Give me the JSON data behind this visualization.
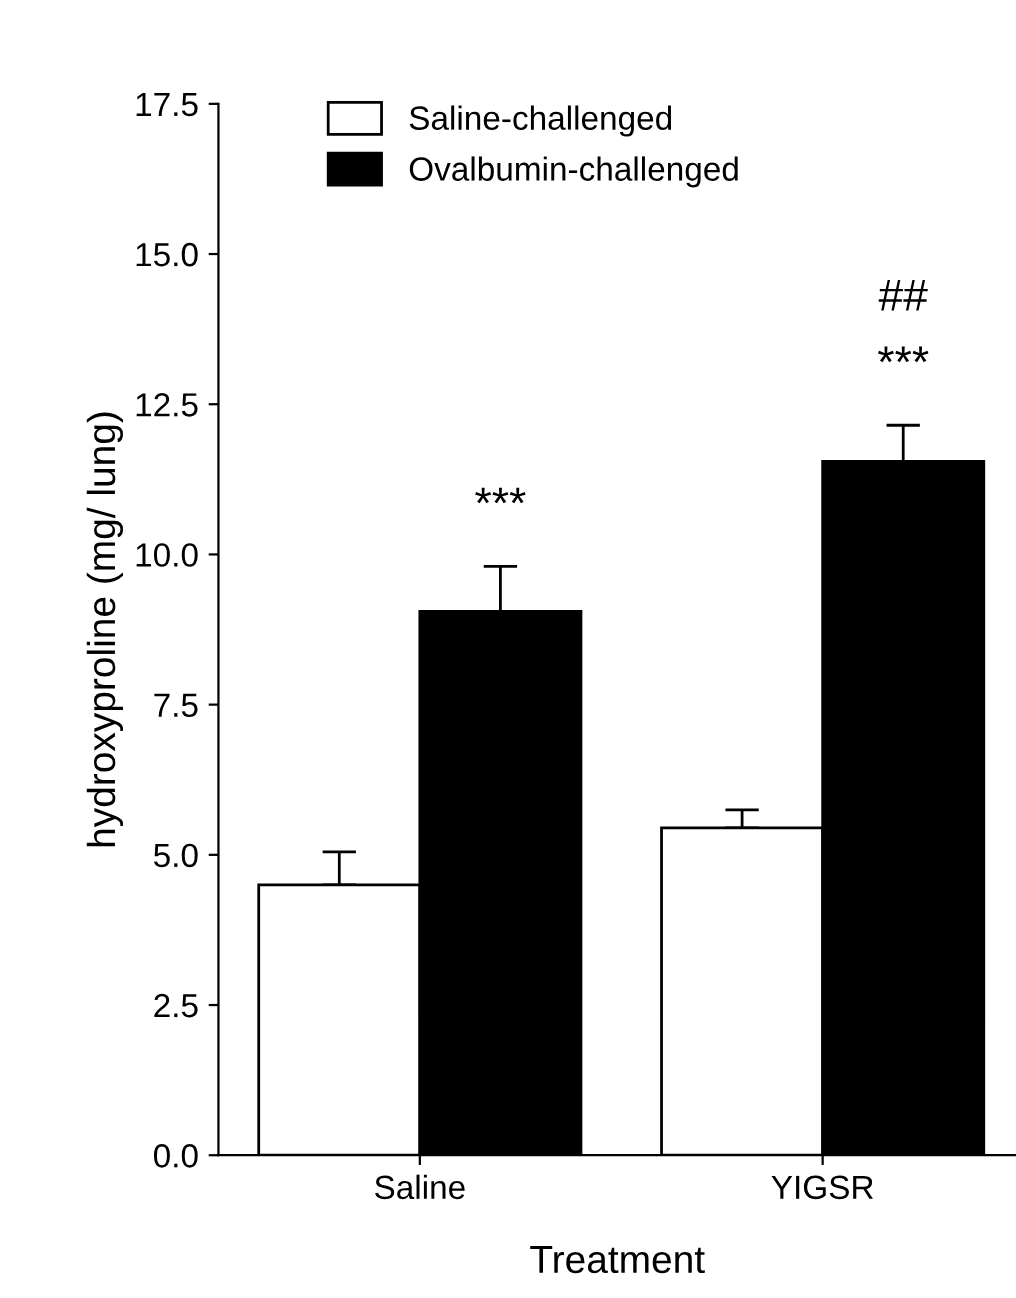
{
  "chart_data": {
    "type": "bar",
    "xlabel": "Treatment",
    "ylabel": "hydroxyproline (mg/ lung)",
    "categories": [
      "Saline",
      "YIGSR"
    ],
    "series": [
      {
        "name": "Saline-challenged",
        "color": "#ffffff",
        "values": [
          4.5,
          5.45
        ],
        "errors": [
          [
            4.5,
            5.05
          ],
          [
            5.45,
            5.75
          ]
        ]
      },
      {
        "name": "Ovalbumin-challenged",
        "color": "#000000",
        "values": [
          9.05,
          11.55
        ],
        "errors": [
          [
            9.05,
            9.8
          ],
          [
            11.55,
            12.15
          ]
        ]
      }
    ],
    "annotations": [
      "***",
      "***",
      "##"
    ],
    "ylim": [
      0,
      17.5
    ],
    "yticks": [
      {
        "value": 0,
        "label": "0.0"
      },
      {
        "value": 2.5,
        "label": "2.5"
      },
      {
        "value": 5,
        "label": "5.0"
      },
      {
        "value": 7.5,
        "label": "7.5"
      },
      {
        "value": 10,
        "label": "10.0"
      },
      {
        "value": 12.5,
        "label": "12.5"
      },
      {
        "value": 15,
        "label": "15.0"
      },
      {
        "value": 17.5,
        "label": "17.5"
      }
    ],
    "grid": false,
    "legend": "top left"
  }
}
